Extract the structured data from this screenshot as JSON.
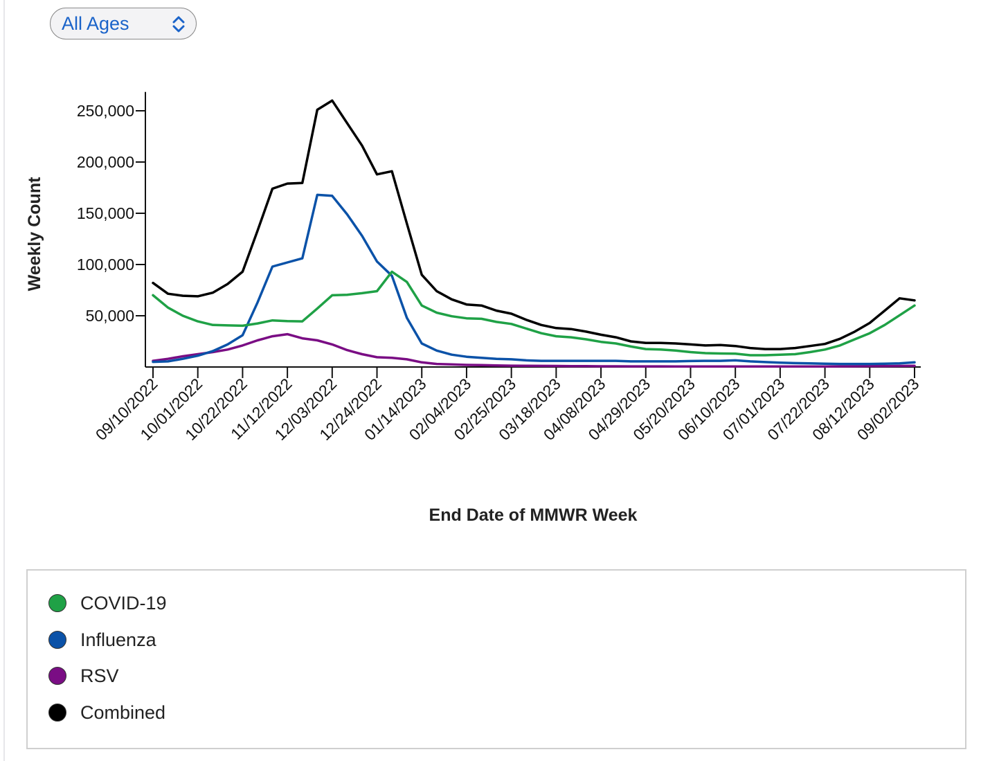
{
  "filter": {
    "selected": "All Ages"
  },
  "chart_data": {
    "type": "line",
    "title": "",
    "xlabel": "End Date of MMWR Week",
    "ylabel": "Weekly Count",
    "ylim": [
      0,
      265000
    ],
    "yticks": [
      50000,
      100000,
      150000,
      200000,
      250000
    ],
    "ytick_labels": [
      "50,000",
      "100,000",
      "150,000",
      "200,000",
      "250,000"
    ],
    "xtick_labels": [
      "09/10/2022",
      "10/01/2022",
      "10/22/2022",
      "11/12/2022",
      "12/03/2022",
      "12/24/2022",
      "01/14/2023",
      "02/04/2023",
      "02/25/2023",
      "03/18/2023",
      "04/08/2023",
      "04/29/2023",
      "05/20/2023",
      "06/10/2023",
      "07/01/2023",
      "07/22/2023",
      "08/12/2023",
      "09/02/2023"
    ],
    "x": [
      "09/10/2022",
      "09/17/2022",
      "09/24/2022",
      "10/01/2022",
      "10/08/2022",
      "10/15/2022",
      "10/22/2022",
      "10/29/2022",
      "11/05/2022",
      "11/12/2022",
      "11/19/2022",
      "11/26/2022",
      "12/03/2022",
      "12/10/2022",
      "12/17/2022",
      "12/24/2022",
      "12/31/2022",
      "01/07/2023",
      "01/14/2023",
      "01/21/2023",
      "01/28/2023",
      "02/04/2023",
      "02/11/2023",
      "02/18/2023",
      "02/25/2023",
      "03/04/2023",
      "03/11/2023",
      "03/18/2023",
      "03/25/2023",
      "04/01/2023",
      "04/08/2023",
      "04/15/2023",
      "04/22/2023",
      "04/29/2023",
      "05/06/2023",
      "05/13/2023",
      "05/20/2023",
      "05/27/2023",
      "06/03/2023",
      "06/10/2023",
      "06/17/2023",
      "06/24/2023",
      "07/01/2023",
      "07/08/2023",
      "07/15/2023",
      "07/22/2023",
      "07/29/2023",
      "08/05/2023",
      "08/12/2023",
      "08/19/2023",
      "08/26/2023",
      "09/02/2023"
    ],
    "series": [
      {
        "name": "COVID-19",
        "color": "#1fa146",
        "values": [
          70000,
          58000,
          50000,
          44500,
          41000,
          40600,
          40300,
          42500,
          45500,
          44800,
          44500,
          57000,
          70000,
          70500,
          72000,
          74000,
          93000,
          83000,
          60000,
          53000,
          49500,
          47500,
          47000,
          44000,
          42000,
          37500,
          33000,
          30000,
          29000,
          27000,
          24500,
          23000,
          20000,
          17500,
          17000,
          16000,
          14500,
          13500,
          13200,
          13000,
          11500,
          11500,
          12000,
          12500,
          14500,
          17000,
          21000,
          27000,
          33000,
          41000,
          50500,
          60000
        ]
      },
      {
        "name": "Influenza",
        "color": "#0b52a8",
        "values": [
          5000,
          5500,
          8000,
          11000,
          15500,
          22000,
          31000,
          63000,
          98000,
          102000,
          106000,
          168000,
          167000,
          149000,
          128000,
          103000,
          89000,
          48000,
          23000,
          16000,
          12000,
          10000,
          9000,
          8000,
          7500,
          6500,
          6000,
          6000,
          6000,
          6000,
          6000,
          6000,
          5500,
          5500,
          5500,
          5500,
          5800,
          6000,
          6000,
          6500,
          5500,
          4800,
          4200,
          3800,
          3500,
          3200,
          3000,
          3000,
          3000,
          3200,
          3500,
          4500
        ]
      },
      {
        "name": "RSV",
        "color": "#7a0d84",
        "values": [
          6000,
          8000,
          10500,
          12500,
          14500,
          17000,
          21000,
          26000,
          30000,
          32000,
          28000,
          26000,
          22000,
          16500,
          12500,
          9500,
          9000,
          7500,
          4500,
          3000,
          2500,
          2000,
          1800,
          1500,
          1300,
          1200,
          1100,
          1000,
          900,
          800,
          700,
          700,
          600,
          600,
          600,
          500,
          500,
          500,
          500,
          500,
          500,
          500,
          500,
          500,
          500,
          500,
          600,
          700,
          800,
          900,
          1000,
          1200
        ]
      },
      {
        "name": "Combined",
        "color": "#000000",
        "values": [
          82000,
          71500,
          69500,
          69000,
          72500,
          81000,
          93000,
          133000,
          174000,
          179000,
          179500,
          251000,
          260000,
          238000,
          216000,
          188000,
          191000,
          140000,
          90000,
          74000,
          66000,
          61000,
          60000,
          55000,
          52000,
          46000,
          41000,
          38000,
          37000,
          34500,
          31500,
          29000,
          25000,
          23500,
          23500,
          23000,
          22000,
          21000,
          21500,
          20500,
          18500,
          17500,
          17500,
          18500,
          20500,
          22500,
          27500,
          34500,
          43000,
          55000,
          67000,
          65000
        ]
      }
    ],
    "legend_position": "bottom",
    "grid": false
  }
}
